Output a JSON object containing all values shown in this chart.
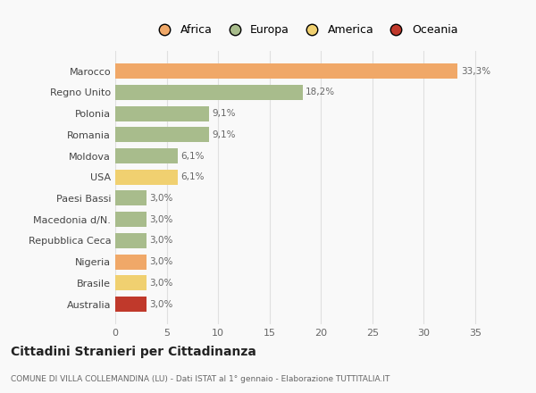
{
  "categories": [
    "Marocco",
    "Regno Unito",
    "Polonia",
    "Romania",
    "Moldova",
    "USA",
    "Paesi Bassi",
    "Macedonia d/N.",
    "Repubblica Ceca",
    "Nigeria",
    "Brasile",
    "Australia"
  ],
  "values": [
    33.3,
    18.2,
    9.1,
    9.1,
    6.1,
    6.1,
    3.0,
    3.0,
    3.0,
    3.0,
    3.0,
    3.0
  ],
  "labels": [
    "33,3%",
    "18,2%",
    "9,1%",
    "9,1%",
    "6,1%",
    "6,1%",
    "3,0%",
    "3,0%",
    "3,0%",
    "3,0%",
    "3,0%",
    "3,0%"
  ],
  "bar_colors": [
    "#f0a868",
    "#a8bc8c",
    "#a8bc8c",
    "#a8bc8c",
    "#a8bc8c",
    "#f0d070",
    "#a8bc8c",
    "#a8bc8c",
    "#a8bc8c",
    "#f0a868",
    "#f0d070",
    "#c0392b"
  ],
  "legend_labels": [
    "Africa",
    "Europa",
    "America",
    "Oceania"
  ],
  "legend_colors": [
    "#f0a868",
    "#a8bc8c",
    "#f0d070",
    "#c0392b"
  ],
  "title": "Cittadini Stranieri per Cittadinanza",
  "subtitle": "COMUNE DI VILLA COLLEMANDINA (LU) - Dati ISTAT al 1° gennaio - Elaborazione TUTTITALIA.IT",
  "xlim": [
    0,
    37
  ],
  "xticks": [
    0,
    5,
    10,
    15,
    20,
    25,
    30,
    35
  ],
  "bg_color": "#f9f9f9",
  "grid_color": "#e0e0e0"
}
